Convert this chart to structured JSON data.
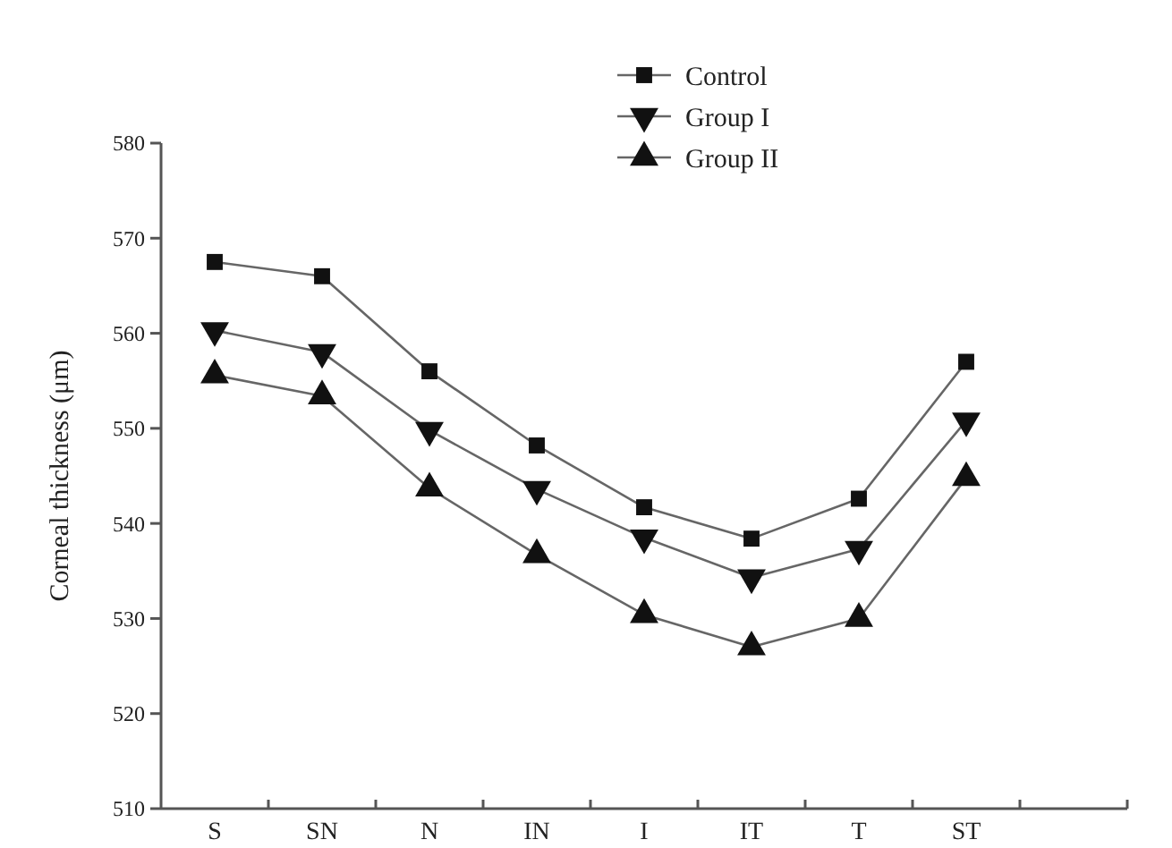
{
  "chart_data": {
    "type": "line",
    "ylabel": "Corneal thickness (μm)",
    "categories": [
      "S",
      "SN",
      "N",
      "IN",
      "I",
      "IT",
      "T",
      "ST",
      null
    ],
    "series": [
      {
        "name": "Control",
        "color": "#111111",
        "marker": "square",
        "values": [
          567.5,
          566,
          556,
          548.2,
          541.7,
          538.4,
          542.6,
          557,
          null
        ]
      },
      {
        "name": "Group I",
        "color": "#111111",
        "marker": "triangle-down",
        "values": [
          560.3,
          558,
          549.8,
          543.6,
          538.5,
          534.3,
          537.3,
          550.8,
          null
        ]
      },
      {
        "name": "Group II",
        "color": "#111111",
        "marker": "triangle",
        "values": [
          555.6,
          553.4,
          543.7,
          536.7,
          530.4,
          527,
          530,
          544.8,
          null
        ]
      }
    ],
    "ylim": [
      510,
      580
    ],
    "yticks": [
      510,
      520,
      530,
      540,
      550,
      560,
      570,
      580
    ],
    "grid": false,
    "legend": "top right"
  }
}
